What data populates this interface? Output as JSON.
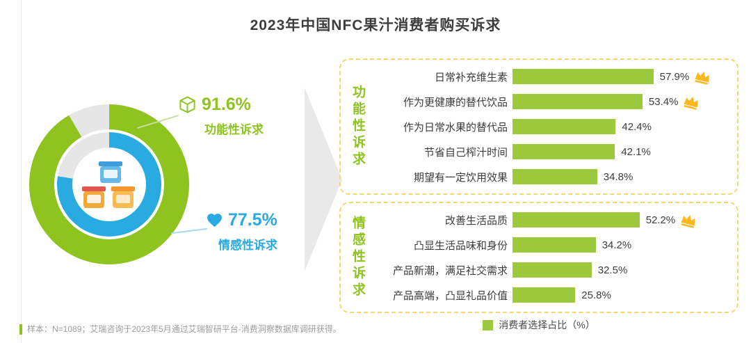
{
  "title": "2023年中国NFC果汁消费者购买诉求",
  "colors": {
    "bar": "#9dc93c",
    "green": "#8fc31f",
    "blue": "#29abe2",
    "gray_segment": "#e6e6e6",
    "dashed_border": "#f5d66b",
    "crown": "#ffb81c",
    "arrow": "#e9e9e9"
  },
  "chart_data": [
    {
      "type": "donut",
      "rings": [
        {
          "label": "功能性诉求",
          "value": 91.6,
          "display": "91.6%",
          "color_key": "green"
        },
        {
          "label": "情感性诉求",
          "value": 77.5,
          "display": "77.5%",
          "color_key": "blue"
        }
      ]
    },
    {
      "type": "bar",
      "orientation": "horizontal",
      "unit": "%",
      "xlim": [
        0,
        60
      ],
      "legend": "消费者选择占比（%）",
      "groups": [
        {
          "name": "功能性诉求",
          "items": [
            {
              "label": "日常补充维生素",
              "value": 57.9,
              "crown": true
            },
            {
              "label": "作为更健康的替代饮品",
              "value": 53.4,
              "crown": true
            },
            {
              "label": "作为日常水果的替代品",
              "value": 42.4,
              "crown": false
            },
            {
              "label": "节省自己榨汁时间",
              "value": 42.1,
              "crown": false
            },
            {
              "label": "期望有一定饮用效果",
              "value": 34.8,
              "crown": false
            }
          ]
        },
        {
          "name": "情感性诉求",
          "items": [
            {
              "label": "改善生活品质",
              "value": 52.2,
              "crown": true
            },
            {
              "label": "凸显生活品味和身份",
              "value": 34.2,
              "crown": false
            },
            {
              "label": "产品新潮，满足社交需求",
              "value": 32.5,
              "crown": false
            },
            {
              "label": "产品高端，凸显礼品价值",
              "value": 25.8,
              "crown": false
            }
          ]
        }
      ]
    }
  ],
  "footnote": "样本：N=1089；艾瑞咨询于2023年5月通过艾瑞智研平台-消费洞察数据库调研获得。"
}
